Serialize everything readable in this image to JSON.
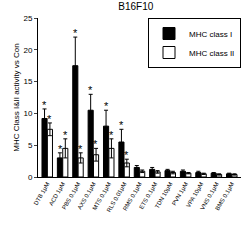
{
  "chart_data": {
    "type": "bar",
    "title": "B16F10",
    "y_label": "MHC Class I&II activity vs Con",
    "categories": [
      "DTB 1μM",
      "ACD 1μM",
      "PBS 0.1μM",
      "AXS 0.1μM",
      "MTS 0.1μM",
      "RLS 0.01μM",
      "RMS 0.1μM",
      "ETS 0.1μM",
      "TDN 10μM",
      "PVN 1μM",
      "VPA 10μM",
      "VNS 0.1μM",
      "BMS 0.1μM"
    ],
    "series": [
      {
        "name": "MHC class I",
        "color": "#000000",
        "values": [
          9.2,
          3.0,
          17.5,
          10.5,
          8.0,
          5.5,
          1.5,
          1.2,
          1.0,
          0.9,
          0.7,
          0.6,
          0.5
        ],
        "errors": [
          1.5,
          0.8,
          4.5,
          2.5,
          2.5,
          2.0,
          0.3,
          0.3,
          0.2,
          0.2,
          0.2,
          0.1,
          0.1
        ],
        "annotations": [
          "*",
          "*",
          "*",
          "*",
          "*",
          "*",
          null,
          null,
          null,
          null,
          null,
          null,
          null
        ]
      },
      {
        "name": "MHC class II",
        "color": "#ffffff",
        "values": [
          7.5,
          4.5,
          3.0,
          3.5,
          4.5,
          2.2,
          0.9,
          0.8,
          0.7,
          0.6,
          0.5,
          0.4,
          0.4
        ],
        "errors": [
          1.0,
          1.5,
          0.8,
          1.0,
          1.5,
          0.6,
          0.2,
          0.2,
          0.2,
          0.1,
          0.1,
          0.1,
          0.1
        ],
        "annotations": [
          "*",
          "*",
          "*",
          "*",
          "*",
          "*",
          null,
          null,
          null,
          null,
          null,
          null,
          null
        ]
      }
    ],
    "ylim": [
      0,
      25
    ],
    "yticks": [
      0,
      5,
      10,
      15,
      20,
      25
    ],
    "legend": "upper right",
    "grid": false
  }
}
